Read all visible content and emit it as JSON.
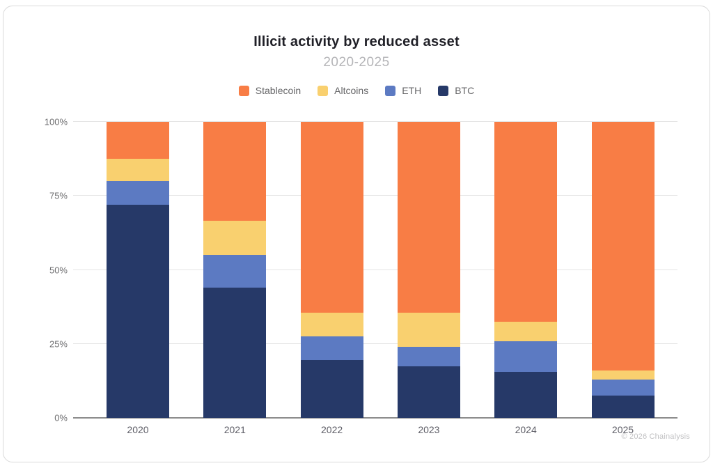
{
  "header": {
    "title": "Illicit activity by reduced asset",
    "subtitle": "2020-2025"
  },
  "footer": {
    "credit": "© 2026 Chainalysis"
  },
  "chart_data": {
    "type": "bar",
    "stacked": true,
    "unit": "percent",
    "title": "Illicit activity by reduced asset",
    "subtitle": "2020-2025",
    "categories": [
      "2020",
      "2021",
      "2022",
      "2023",
      "2024",
      "2025"
    ],
    "series": [
      {
        "name": "Stablecoin",
        "color": "#F87D45",
        "values": [
          12.5,
          33.5,
          64.5,
          64.5,
          67.5,
          84
        ]
      },
      {
        "name": "Altcoins",
        "color": "#F9D06F",
        "values": [
          7.5,
          11.5,
          8,
          11.5,
          6.5,
          3
        ]
      },
      {
        "name": "ETH",
        "color": "#5C7AC2",
        "values": [
          8,
          11,
          8,
          6.5,
          10.5,
          5.5
        ]
      },
      {
        "name": "BTC",
        "color": "#263968",
        "values": [
          72,
          44,
          19.5,
          17.5,
          15.5,
          7.5
        ]
      }
    ],
    "stack_order_bottom_to_top": [
      "BTC",
      "ETH",
      "Altcoins",
      "Stablecoin"
    ],
    "yticks": [
      "0%",
      "25%",
      "50%",
      "75%",
      "100%"
    ],
    "ytick_values": [
      0,
      25,
      50,
      75,
      100
    ],
    "ylim": [
      0,
      100
    ],
    "legend_position": "top",
    "grid": "horizontal",
    "colors": {
      "gridline": "#e4e4e4",
      "axis_line": "#8c8c8c",
      "tick_label": "#6e6e70"
    }
  }
}
